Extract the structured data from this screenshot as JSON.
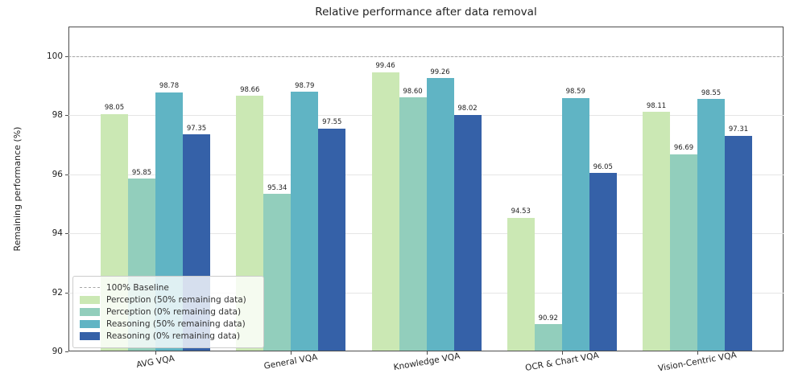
{
  "chart_data": {
    "type": "bar",
    "title": "Relative performance after data removal",
    "xlabel": "",
    "ylabel": "Remaining performance (%)",
    "ylim": [
      90,
      101.01
    ],
    "yticks": [
      90,
      92,
      94,
      96,
      98,
      100
    ],
    "grid": "horizontal",
    "legend_position": "lower-left",
    "bar_label_decimals": 2,
    "baseline": {
      "value": 100,
      "label": "100% Baseline",
      "style": "dashed",
      "color": "#a6a6a6"
    },
    "categories": [
      "AVG VQA",
      "General VQA",
      "Knowledge VQA",
      "OCR & Chart VQA",
      "Vision-Centric VQA"
    ],
    "series": [
      {
        "name": "Perception (50% remaining data)",
        "color": "#cbe8b4",
        "values": [
          98.05,
          98.66,
          99.46,
          94.53,
          98.11
        ]
      },
      {
        "name": "Perception (0% remaining data)",
        "color": "#92cebc",
        "values": [
          95.85,
          95.34,
          98.6,
          90.92,
          96.69
        ]
      },
      {
        "name": "Reasoning (50% remaining data)",
        "color": "#60b4c4",
        "values": [
          98.78,
          98.79,
          99.26,
          98.59,
          98.55
        ]
      },
      {
        "name": "Reasoning (0% remaining data)",
        "color": "#3561a8",
        "values": [
          97.35,
          97.55,
          98.02,
          96.05,
          97.31
        ]
      }
    ]
  }
}
